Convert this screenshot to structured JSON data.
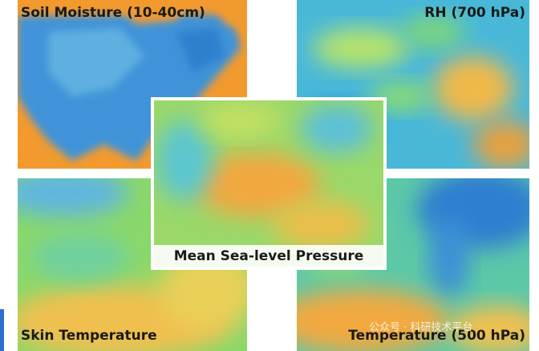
{
  "panels": {
    "soil_moisture": {
      "label": "Soil Moisture (10-40cm)"
    },
    "rh": {
      "label": "RH (700 hPa)"
    },
    "pressure": {
      "label": "Mean Sea-level Pressure"
    },
    "skin_temperature": {
      "label": "Skin Temperature"
    },
    "temperature": {
      "label": "Temperature (500 hPa)"
    }
  },
  "watermark": "公众号 · 科研技术平台"
}
